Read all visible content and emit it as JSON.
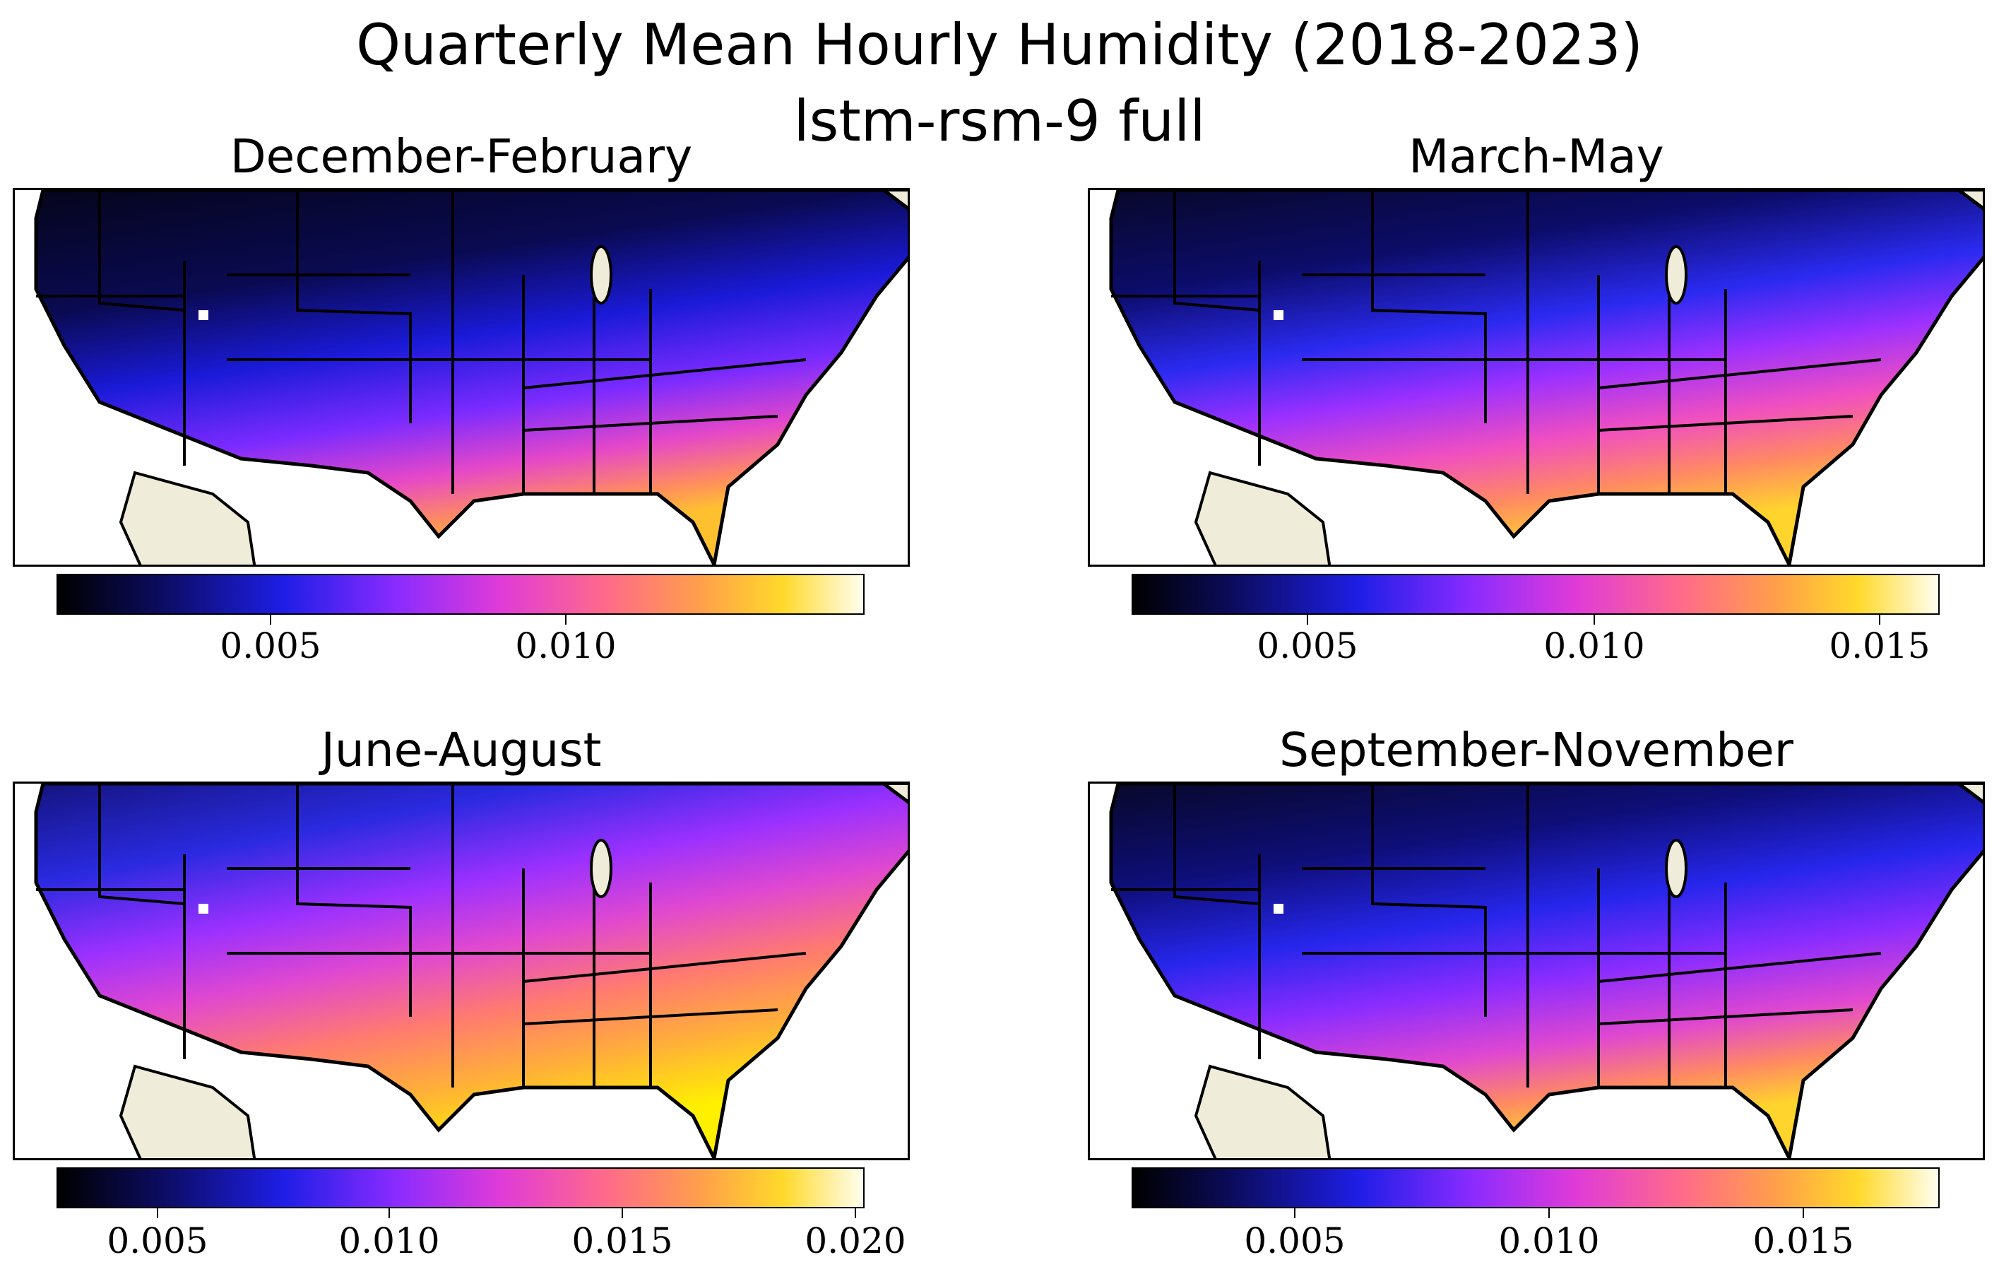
{
  "figure": {
    "title_line1": "Quarterly Mean Hourly Humidity (2018-2023)",
    "title_line2": "lstm-rsm-9 full"
  },
  "panels": [
    {
      "id": "djf",
      "title": "December-February",
      "colorbar": {
        "min": 0.0013,
        "max": 0.015,
        "ticks": [
          "0.005",
          "0.010"
        ]
      }
    },
    {
      "id": "mam",
      "title": "March-May",
      "colorbar": {
        "min": 0.0018,
        "max": 0.016,
        "ticks": [
          "0.005",
          "0.010",
          "0.015"
        ]
      }
    },
    {
      "id": "jja",
      "title": "June-August",
      "colorbar": {
        "min": 0.0029,
        "max": 0.0203,
        "ticks": [
          "0.005",
          "0.010",
          "0.015",
          "0.020"
        ]
      }
    },
    {
      "id": "son",
      "title": "September-November",
      "colorbar": {
        "min": 0.0018,
        "max": 0.0175,
        "ticks": [
          "0.005",
          "0.010",
          "0.015"
        ]
      }
    }
  ],
  "colors": {
    "land_outside": "#efedd9",
    "border": "#000000",
    "missing": "#ffffff"
  }
}
